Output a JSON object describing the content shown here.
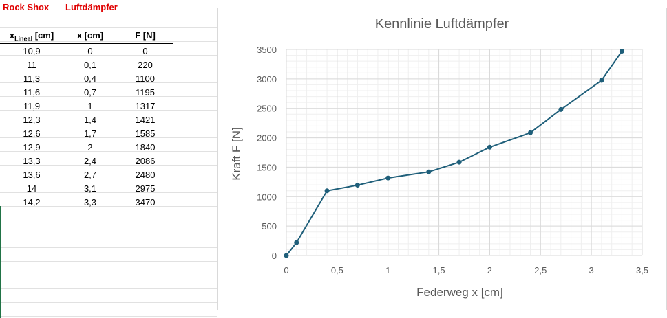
{
  "sheet": {
    "brand": "Rock Shox",
    "product": "Luftdämpfer",
    "headers": {
      "xlineal_main": "x",
      "xlineal_sub": "Lineal",
      "xlineal_unit": "[cm]",
      "x": "x [cm]",
      "f": "F [N]"
    },
    "rows": [
      [
        "10,9",
        "0",
        "0"
      ],
      [
        "11",
        "0,1",
        "220"
      ],
      [
        "11,3",
        "0,4",
        "1100"
      ],
      [
        "11,6",
        "0,7",
        "1195"
      ],
      [
        "11,9",
        "1",
        "1317"
      ],
      [
        "12,3",
        "1,4",
        "1421"
      ],
      [
        "12,6",
        "1,7",
        "1585"
      ],
      [
        "12,9",
        "2",
        "1840"
      ],
      [
        "13,3",
        "2,4",
        "2086"
      ],
      [
        "13,6",
        "2,7",
        "2480"
      ],
      [
        "14",
        "3,1",
        "2975"
      ],
      [
        "14,2",
        "3,3",
        "3470"
      ]
    ]
  },
  "chart_data": {
    "type": "scatter",
    "title": "Kennlinie Luftdämpfer",
    "xlabel": "Federweg x [cm]",
    "ylabel": "Kraft F [N]",
    "xlim": [
      0,
      3.5
    ],
    "ylim": [
      0,
      3500
    ],
    "x_ticks": [
      "0",
      "0,5",
      "1",
      "1,5",
      "2",
      "2,5",
      "3",
      "3,5"
    ],
    "y_ticks": [
      "0",
      "500",
      "1000",
      "1500",
      "2000",
      "2500",
      "3000",
      "3500"
    ],
    "grid": true,
    "minor_grid": true,
    "legend": "none",
    "color": "#1f5f7a",
    "series": [
      {
        "x": [
          0,
          0.1,
          0.4,
          0.7,
          1,
          1.4,
          1.7,
          2,
          2.4,
          2.7,
          3.1,
          3.3
        ],
        "y": [
          0,
          220,
          1100,
          1195,
          1317,
          1421,
          1585,
          1840,
          2086,
          2480,
          2975,
          3470
        ]
      }
    ]
  }
}
